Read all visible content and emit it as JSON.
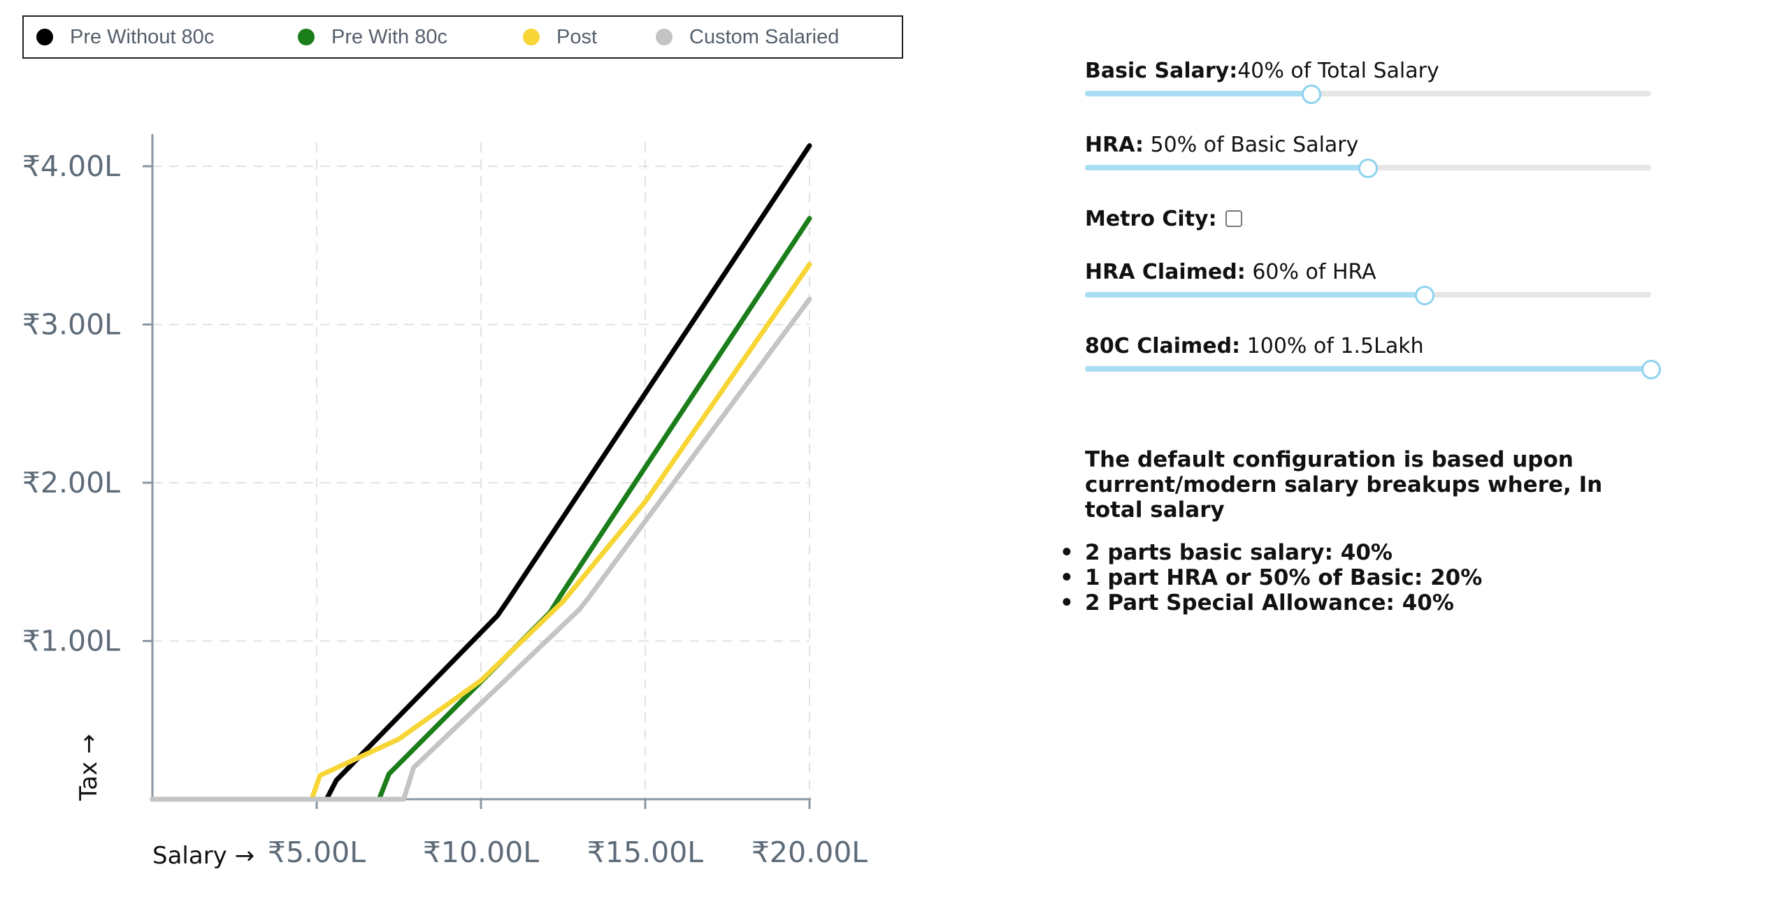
{
  "legend": [
    {
      "label": "Pre Without 80c",
      "color": "#000000"
    },
    {
      "label": "Pre With 80c",
      "color": "#1a7d1a"
    },
    {
      "label": "Post",
      "color": "#f6d534"
    },
    {
      "label": "Custom Salaried",
      "color": "#c4c4c4"
    }
  ],
  "chart_data": {
    "type": "line",
    "xlabel": "Salary →",
    "ylabel": "Tax →",
    "x_ticks": [
      "₹5.00L",
      "₹10.00L",
      "₹15.00L",
      "₹20.00L"
    ],
    "y_ticks": [
      "₹1.00L",
      "₹2.00L",
      "₹3.00L",
      "₹4.00L"
    ],
    "x_tick_values": [
      5,
      10,
      15,
      20
    ],
    "y_tick_values": [
      1,
      2,
      3,
      4
    ],
    "xlim": [
      0,
      20
    ],
    "ylim": [
      0,
      4.15
    ],
    "x_unit": "Lakh",
    "y_unit": "Lakh",
    "grid": true,
    "series": [
      {
        "name": "Pre Without 80c",
        "color": "#000000",
        "points": [
          [
            0,
            0
          ],
          [
            5.3,
            0
          ],
          [
            5.6,
            0.12
          ],
          [
            10.5,
            1.16
          ],
          [
            10.8,
            1.25
          ],
          [
            20,
            4.13
          ]
        ]
      },
      {
        "name": "Pre With 80c",
        "color": "#1a7d1a",
        "points": [
          [
            0,
            0
          ],
          [
            6.9,
            0
          ],
          [
            7.2,
            0.16
          ],
          [
            12.1,
            1.18
          ],
          [
            12.4,
            1.28
          ],
          [
            20,
            3.67
          ]
        ]
      },
      {
        "name": "Post",
        "color": "#f6d534",
        "points": [
          [
            0,
            0
          ],
          [
            4.85,
            0
          ],
          [
            5.1,
            0.15
          ],
          [
            7.5,
            0.38
          ],
          [
            10,
            0.75
          ],
          [
            12.5,
            1.25
          ],
          [
            15,
            1.88
          ],
          [
            20,
            3.38
          ]
        ]
      },
      {
        "name": "Custom Salaried",
        "color": "#c4c4c4",
        "points": [
          [
            0,
            0
          ],
          [
            7.65,
            0
          ],
          [
            7.95,
            0.2
          ],
          [
            13,
            1.2
          ],
          [
            13.3,
            1.28
          ],
          [
            20,
            3.16
          ]
        ]
      }
    ]
  },
  "controls": {
    "basic": {
      "label": "Basic Salary:",
      "text": "40% of Total Salary",
      "value": 0.4
    },
    "hra": {
      "label": "HRA:",
      "text": " 50% of Basic Salary",
      "value": 0.5
    },
    "metro": {
      "label": "Metro City:",
      "checked": false
    },
    "hra_claimed": {
      "label": "HRA Claimed:",
      "text": " 60% of HRA",
      "value": 0.6
    },
    "c80": {
      "label": "80C Claimed:",
      "text": " 100% of 1.5Lakh",
      "value": 1.0
    }
  },
  "note": {
    "text": "The default configuration is based upon current/modern salary breakups where, In total salary",
    "bullets": [
      "2 parts basic salary: 40%",
      "1 part HRA or 50% of Basic: 20%",
      "2 Part Special Allowance: 40%"
    ]
  }
}
